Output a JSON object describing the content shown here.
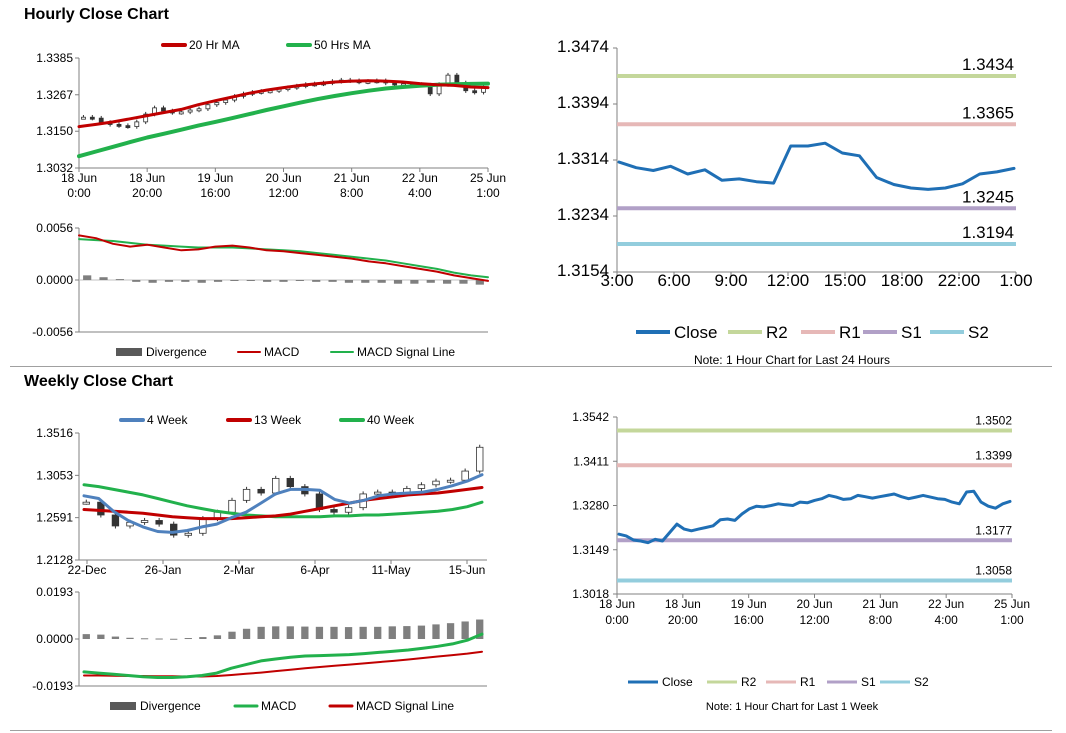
{
  "sections": {
    "hourly_title": "Hourly Close Chart",
    "weekly_title": "Weekly Close Chart"
  },
  "colors": {
    "close": "#1f6fb5",
    "r2": "#c4d79b",
    "r1": "#e6b8b7",
    "s1": "#b1a0c7",
    "s2": "#93cddd",
    "red": "#c00000",
    "green": "#22b14c",
    "blue4wk": "#4f81bd",
    "divergence": "#7f7f7f"
  },
  "chart_data": [
    {
      "id": "hourly-price",
      "type": "line",
      "title": "Hourly Close Chart",
      "ylim": [
        1.3032,
        1.3385
      ],
      "ytick_labels": [
        "1.3385",
        "1.3267",
        "1.3150",
        "1.3032"
      ],
      "ytick_values": [
        1.3385,
        1.3267,
        1.315,
        1.3032
      ],
      "x_tick_labels": [
        [
          "18 Jun",
          "0:00"
        ],
        [
          "18 Jun",
          "20:00"
        ],
        [
          "19 Jun",
          "16:00"
        ],
        [
          "20 Jun",
          "12:00"
        ],
        [
          "21 Jun",
          "8:00"
        ],
        [
          "22 Jun",
          "4:00"
        ],
        [
          "25 Jun",
          "1:00"
        ]
      ],
      "legend": [
        "20 Hr MA",
        "50 Hrs MA"
      ],
      "candles": [
        1.3195,
        1.3192,
        1.3178,
        1.3172,
        1.3168,
        1.3165,
        1.318,
        1.3205,
        1.3225,
        1.3215,
        1.321,
        1.3212,
        1.3218,
        1.3222,
        1.3235,
        1.3242,
        1.325,
        1.3262,
        1.327,
        1.3275,
        1.3278,
        1.328,
        1.3285,
        1.329,
        1.3295,
        1.33,
        1.3302,
        1.3305,
        1.331,
        1.3314,
        1.3312,
        1.3308,
        1.331,
        1.3312,
        1.3305,
        1.33,
        1.3302,
        1.33,
        1.3298,
        1.327,
        1.33,
        1.333,
        1.3305,
        1.328,
        1.3275,
        1.329
      ],
      "series": [
        {
          "name": "20 Hr MA",
          "values": [
            1.3165,
            1.3172,
            1.318,
            1.319,
            1.32,
            1.321,
            1.322,
            1.3235,
            1.3248,
            1.326,
            1.3272,
            1.3282,
            1.329,
            1.3297,
            1.3303,
            1.3308,
            1.3311,
            1.3312,
            1.3311,
            1.3308,
            1.3303,
            1.3299,
            1.3297,
            1.3292,
            1.329
          ]
        },
        {
          "name": "50 Hrs MA",
          "values": [
            1.307,
            1.3085,
            1.31,
            1.3115,
            1.313,
            1.3142,
            1.3155,
            1.3168,
            1.318,
            1.3192,
            1.3205,
            1.3218,
            1.323,
            1.3242,
            1.3253,
            1.3263,
            1.3272,
            1.328,
            1.3287,
            1.3292,
            1.3296,
            1.3299,
            1.3301,
            1.3302,
            1.3303
          ]
        }
      ]
    },
    {
      "id": "hourly-macd",
      "type": "line",
      "ylim": [
        -0.0056,
        0.0056
      ],
      "ytick_labels": [
        "0.0056",
        "0.0000",
        "-0.0056"
      ],
      "ytick_values": [
        0.0056,
        0.0,
        -0.0056
      ],
      "legend": [
        "Divergence",
        "MACD",
        "MACD Signal Line"
      ],
      "series": [
        {
          "name": "MACD",
          "values": [
            0.0048,
            0.0045,
            0.0039,
            0.0036,
            0.0038,
            0.0035,
            0.0032,
            0.0033,
            0.0036,
            0.0037,
            0.0035,
            0.0032,
            0.0031,
            0.0029,
            0.0027,
            0.0025,
            0.0023,
            0.002,
            0.0018,
            0.0015,
            0.0012,
            0.0009,
            0.0005,
            0.0002,
            -0.0001
          ]
        },
        {
          "name": "MACD Signal Line",
          "values": [
            0.0044,
            0.0043,
            0.0042,
            0.004,
            0.0038,
            0.0037,
            0.0036,
            0.0035,
            0.0035,
            0.0035,
            0.0034,
            0.0033,
            0.0032,
            0.0031,
            0.0029,
            0.0027,
            0.0025,
            0.0023,
            0.0021,
            0.0018,
            0.0015,
            0.0012,
            0.0008,
            0.0005,
            0.0003
          ]
        },
        {
          "name": "Divergence",
          "values": [
            0.0005,
            0.0003,
            0.0001,
            -0.0002,
            -0.0003,
            -0.0002,
            -0.0002,
            -0.0003,
            -0.0002,
            -0.0001,
            -0.0001,
            -0.0002,
            -0.0002,
            -0.0001,
            -0.0002,
            -0.0002,
            -0.0003,
            -0.0003,
            -0.0003,
            -0.0004,
            -0.0004,
            -0.0003,
            -0.0004,
            -0.0004,
            -0.0005
          ]
        }
      ]
    },
    {
      "id": "hourly-pivot",
      "type": "line",
      "ylim": [
        1.3154,
        1.3474
      ],
      "ytick_labels": [
        "1.3474",
        "1.3394",
        "1.3314",
        "1.3234",
        "1.3154"
      ],
      "ytick_values": [
        1.3474,
        1.3394,
        1.3314,
        1.3234,
        1.3154
      ],
      "x_tick_labels": [
        "3:00",
        "6:00",
        "9:00",
        "12:00",
        "15:00",
        "18:00",
        "22:00",
        "1:00"
      ],
      "levels": [
        {
          "name": "R2",
          "value": 1.3434,
          "label": "1.3434"
        },
        {
          "name": "R1",
          "value": 1.3365,
          "label": "1.3365"
        },
        {
          "name": "S1",
          "value": 1.3245,
          "label": "1.3245"
        },
        {
          "name": "S2",
          "value": 1.3194,
          "label": "1.3194"
        }
      ],
      "legend": [
        "Close",
        "R2",
        "R1",
        "S1",
        "S2"
      ],
      "note": "Note: 1 Hour Chart for Last 24 Hours",
      "series": [
        {
          "name": "Close",
          "values": [
            1.3311,
            1.3303,
            1.3299,
            1.3305,
            1.3294,
            1.33,
            1.3285,
            1.3287,
            1.3283,
            1.3281,
            1.3334,
            1.3334,
            1.3338,
            1.3324,
            1.332,
            1.3289,
            1.3279,
            1.3274,
            1.3272,
            1.3274,
            1.328,
            1.3294,
            1.3297,
            1.3302
          ]
        }
      ]
    },
    {
      "id": "weekly-price",
      "type": "line",
      "title": "Weekly Close Chart",
      "ylim": [
        1.2128,
        1.3516
      ],
      "ytick_labels": [
        "1.3516",
        "1.3053",
        "1.2591",
        "1.2128"
      ],
      "ytick_values": [
        1.3516,
        1.3053,
        1.2591,
        1.2128
      ],
      "x_tick_labels": [
        "22-Dec",
        "26-Jan",
        "2-Mar",
        "6-Apr",
        "11-May",
        "15-Jun"
      ],
      "legend": [
        "4 Week",
        "13 Week",
        "40 Week"
      ],
      "candles": [
        1.276,
        1.262,
        1.25,
        1.254,
        1.256,
        1.252,
        1.24,
        1.242,
        1.258,
        1.265,
        1.278,
        1.29,
        1.286,
        1.302,
        1.293,
        1.285,
        1.268,
        1.265,
        1.27,
        1.285,
        1.287,
        1.285,
        1.291,
        1.295,
        1.299,
        1.3,
        1.31,
        1.336
      ],
      "series": [
        {
          "name": "4 Week",
          "values": [
            1.283,
            1.28,
            1.266,
            1.256,
            1.249,
            1.244,
            1.243,
            1.245,
            1.249,
            1.252,
            1.259,
            1.265,
            1.275,
            1.285,
            1.29,
            1.29,
            1.289,
            1.279,
            1.275,
            1.278,
            1.283,
            1.285,
            1.286,
            1.287,
            1.29,
            1.294,
            1.299,
            1.306
          ]
        },
        {
          "name": "13 Week",
          "values": [
            1.268,
            1.267,
            1.266,
            1.265,
            1.264,
            1.262,
            1.26,
            1.259,
            1.258,
            1.258,
            1.258,
            1.259,
            1.26,
            1.261,
            1.263,
            1.266,
            1.269,
            1.272,
            1.275,
            1.278,
            1.28,
            1.282,
            1.284,
            1.285,
            1.286,
            1.288,
            1.29,
            1.292
          ]
        },
        {
          "name": "40 Week",
          "values": [
            1.295,
            1.293,
            1.29,
            1.287,
            1.284,
            1.28,
            1.276,
            1.272,
            1.269,
            1.266,
            1.264,
            1.262,
            1.261,
            1.26,
            1.26,
            1.26,
            1.26,
            1.261,
            1.261,
            1.262,
            1.262,
            1.263,
            1.264,
            1.265,
            1.266,
            1.268,
            1.271,
            1.276
          ]
        }
      ]
    },
    {
      "id": "weekly-macd",
      "type": "line",
      "ylim": [
        -0.0193,
        0.0193
      ],
      "ytick_labels": [
        "0.0193",
        "0.0000",
        "-0.0193"
      ],
      "ytick_values": [
        0.0193,
        0.0,
        -0.0193
      ],
      "legend": [
        "Divergence",
        "MACD",
        "MACD Signal Line"
      ],
      "series": [
        {
          "name": "MACD",
          "values": [
            -0.0135,
            -0.014,
            -0.0145,
            -0.015,
            -0.0155,
            -0.0158,
            -0.0158,
            -0.0155,
            -0.015,
            -0.014,
            -0.012,
            -0.0105,
            -0.009,
            -0.0082,
            -0.0075,
            -0.007,
            -0.0068,
            -0.0066,
            -0.0064,
            -0.006,
            -0.0055,
            -0.005,
            -0.0045,
            -0.0038,
            -0.003,
            -0.002,
            -0.0005,
            0.002
          ]
        },
        {
          "name": "MACD Signal Line",
          "values": [
            -0.015,
            -0.015,
            -0.0151,
            -0.0152,
            -0.0152,
            -0.0153,
            -0.0153,
            -0.0154,
            -0.0154,
            -0.0152,
            -0.0148,
            -0.0143,
            -0.0138,
            -0.0132,
            -0.0126,
            -0.012,
            -0.0115,
            -0.011,
            -0.0105,
            -0.01,
            -0.0095,
            -0.009,
            -0.0084,
            -0.0078,
            -0.0072,
            -0.0066,
            -0.006,
            -0.0052
          ]
        },
        {
          "name": "Divergence",
          "values": [
            0.002,
            0.0018,
            0.001,
            0.0005,
            0.0003,
            0.0002,
            0.0001,
            0.0004,
            0.0008,
            0.0015,
            0.003,
            0.0042,
            0.005,
            0.0052,
            0.0052,
            0.0051,
            0.005,
            0.005,
            0.0049,
            0.005,
            0.005,
            0.0052,
            0.0053,
            0.0055,
            0.006,
            0.0065,
            0.0072,
            0.008
          ]
        }
      ]
    },
    {
      "id": "weekly-pivot",
      "type": "line",
      "ylim": [
        1.3018,
        1.3542
      ],
      "ytick_labels": [
        "1.3542",
        "1.3411",
        "1.3280",
        "1.3149",
        "1.3018"
      ],
      "ytick_values": [
        1.3542,
        1.3411,
        1.328,
        1.3149,
        1.3018
      ],
      "x_tick_labels": [
        [
          "18 Jun",
          "0:00"
        ],
        [
          "18 Jun",
          "20:00"
        ],
        [
          "19 Jun",
          "16:00"
        ],
        [
          "20 Jun",
          "12:00"
        ],
        [
          "21 Jun",
          "8:00"
        ],
        [
          "22 Jun",
          "4:00"
        ],
        [
          "25 Jun",
          "1:00"
        ]
      ],
      "levels": [
        {
          "name": "R2",
          "value": 1.3502,
          "label": "1.3502"
        },
        {
          "name": "R1",
          "value": 1.3399,
          "label": "1.3399"
        },
        {
          "name": "S1",
          "value": 1.3177,
          "label": "1.3177"
        },
        {
          "name": "S2",
          "value": 1.3058,
          "label": "1.3058"
        }
      ],
      "legend": [
        "Close",
        "R2",
        "R1",
        "S1",
        "S2"
      ],
      "note": "Note: 1 Hour Chart for Last 1 Week",
      "series": [
        {
          "name": "Close",
          "values": [
            1.3195,
            1.319,
            1.3178,
            1.3175,
            1.317,
            1.318,
            1.3175,
            1.32,
            1.3225,
            1.321,
            1.3205,
            1.321,
            1.3215,
            1.322,
            1.3238,
            1.324,
            1.3236,
            1.3255,
            1.327,
            1.3278,
            1.3276,
            1.328,
            1.3285,
            1.3282,
            1.328,
            1.329,
            1.3288,
            1.3295,
            1.33,
            1.331,
            1.3305,
            1.3298,
            1.33,
            1.331,
            1.3306,
            1.3302,
            1.3306,
            1.331,
            1.3314,
            1.3306,
            1.33,
            1.3305,
            1.331,
            1.3305,
            1.33,
            1.3298,
            1.329,
            1.3285,
            1.332,
            1.3322,
            1.329,
            1.3278,
            1.3272,
            1.3285,
            1.3292
          ]
        }
      ]
    }
  ]
}
